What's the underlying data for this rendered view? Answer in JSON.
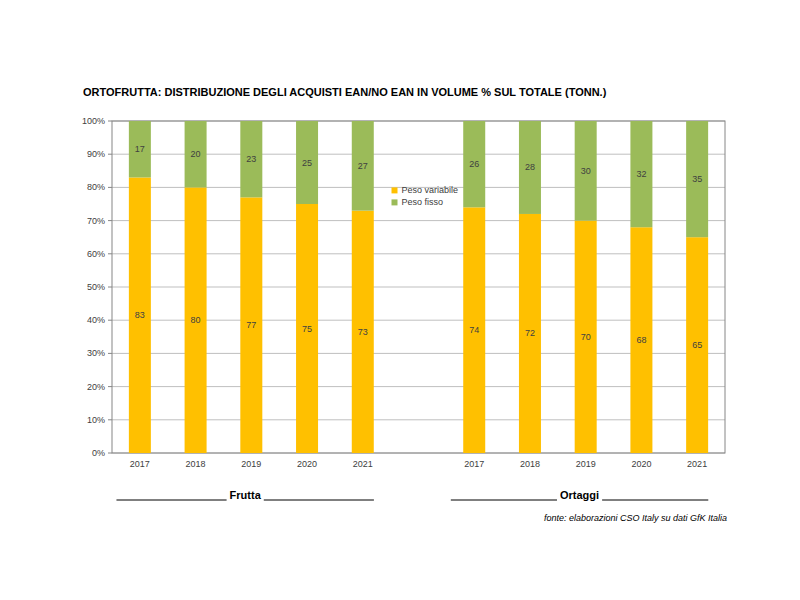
{
  "chart_data": {
    "type": "bar",
    "title": "ORTOFRUTTA: DISTRIBUZIONE DEGLI ACQUISTI EAN/NO EAN IN VOLUME % SUL TOTALE (TONN.)",
    "source": "fonte: elaborazioni CSO Italy su dati GfK Italia",
    "group_labels": [
      "Frutta",
      "Ortaggi"
    ],
    "categories": [
      "2017",
      "2018",
      "2019",
      "2020",
      "2021",
      null,
      "2017",
      "2018",
      "2019",
      "2020",
      "2021"
    ],
    "series": [
      {
        "name": "Peso variabile",
        "color": "#ffc000",
        "values": [
          83,
          80,
          77,
          75,
          73,
          null,
          74,
          72,
          70,
          68,
          65
        ]
      },
      {
        "name": "Peso fisso",
        "color": "#9bbb59",
        "values": [
          17,
          20,
          23,
          25,
          27,
          null,
          26,
          28,
          30,
          32,
          35
        ]
      }
    ],
    "ylim": [
      0,
      100
    ],
    "yticks": [
      {
        "value": 0,
        "label": "0%"
      },
      {
        "value": 10,
        "label": "10%"
      },
      {
        "value": 20,
        "label": "20%"
      },
      {
        "value": 30,
        "label": "30%"
      },
      {
        "value": 40,
        "label": "40%"
      },
      {
        "value": 50,
        "label": "50%"
      },
      {
        "value": 60,
        "label": "60%"
      },
      {
        "value": 70,
        "label": "70%"
      },
      {
        "value": 80,
        "label": "80%"
      },
      {
        "value": 90,
        "label": "90%"
      },
      {
        "value": 100,
        "label": "100%"
      }
    ],
    "stacked": true,
    "data_labels": true,
    "grid": true,
    "legend": "center"
  }
}
